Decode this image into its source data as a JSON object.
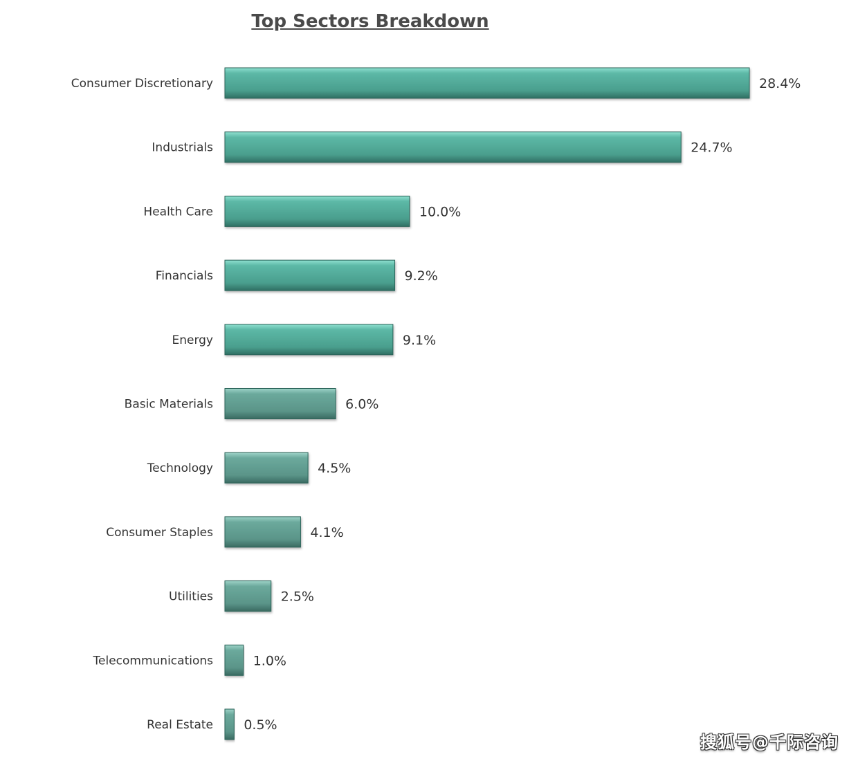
{
  "chart_data": {
    "type": "bar",
    "orientation": "horizontal",
    "title": "Top Sectors Breakdown",
    "categories": [
      "Consumer Discretionary",
      "Industrials",
      "Health Care",
      "Financials",
      "Energy",
      "Basic Materials",
      "Technology",
      "Consumer Staples",
      "Utilities",
      "Telecommunications",
      "Real Estate"
    ],
    "values": [
      28.4,
      24.7,
      10.0,
      9.2,
      9.1,
      6.0,
      4.5,
      4.1,
      2.5,
      1.0,
      0.5
    ],
    "value_labels": [
      "28.4%",
      "24.7%",
      "10.0%",
      "9.2%",
      "9.1%",
      "6.0%",
      "4.5%",
      "4.1%",
      "2.5%",
      "1.0%",
      "0.5%"
    ],
    "unit": "%",
    "xlim": [
      0,
      28.4
    ],
    "grid": false,
    "legend": "none",
    "bar_color": "#4fa796",
    "bar_color_muted": "#5e978c"
  },
  "watermark": "搜狐号@千际咨询"
}
